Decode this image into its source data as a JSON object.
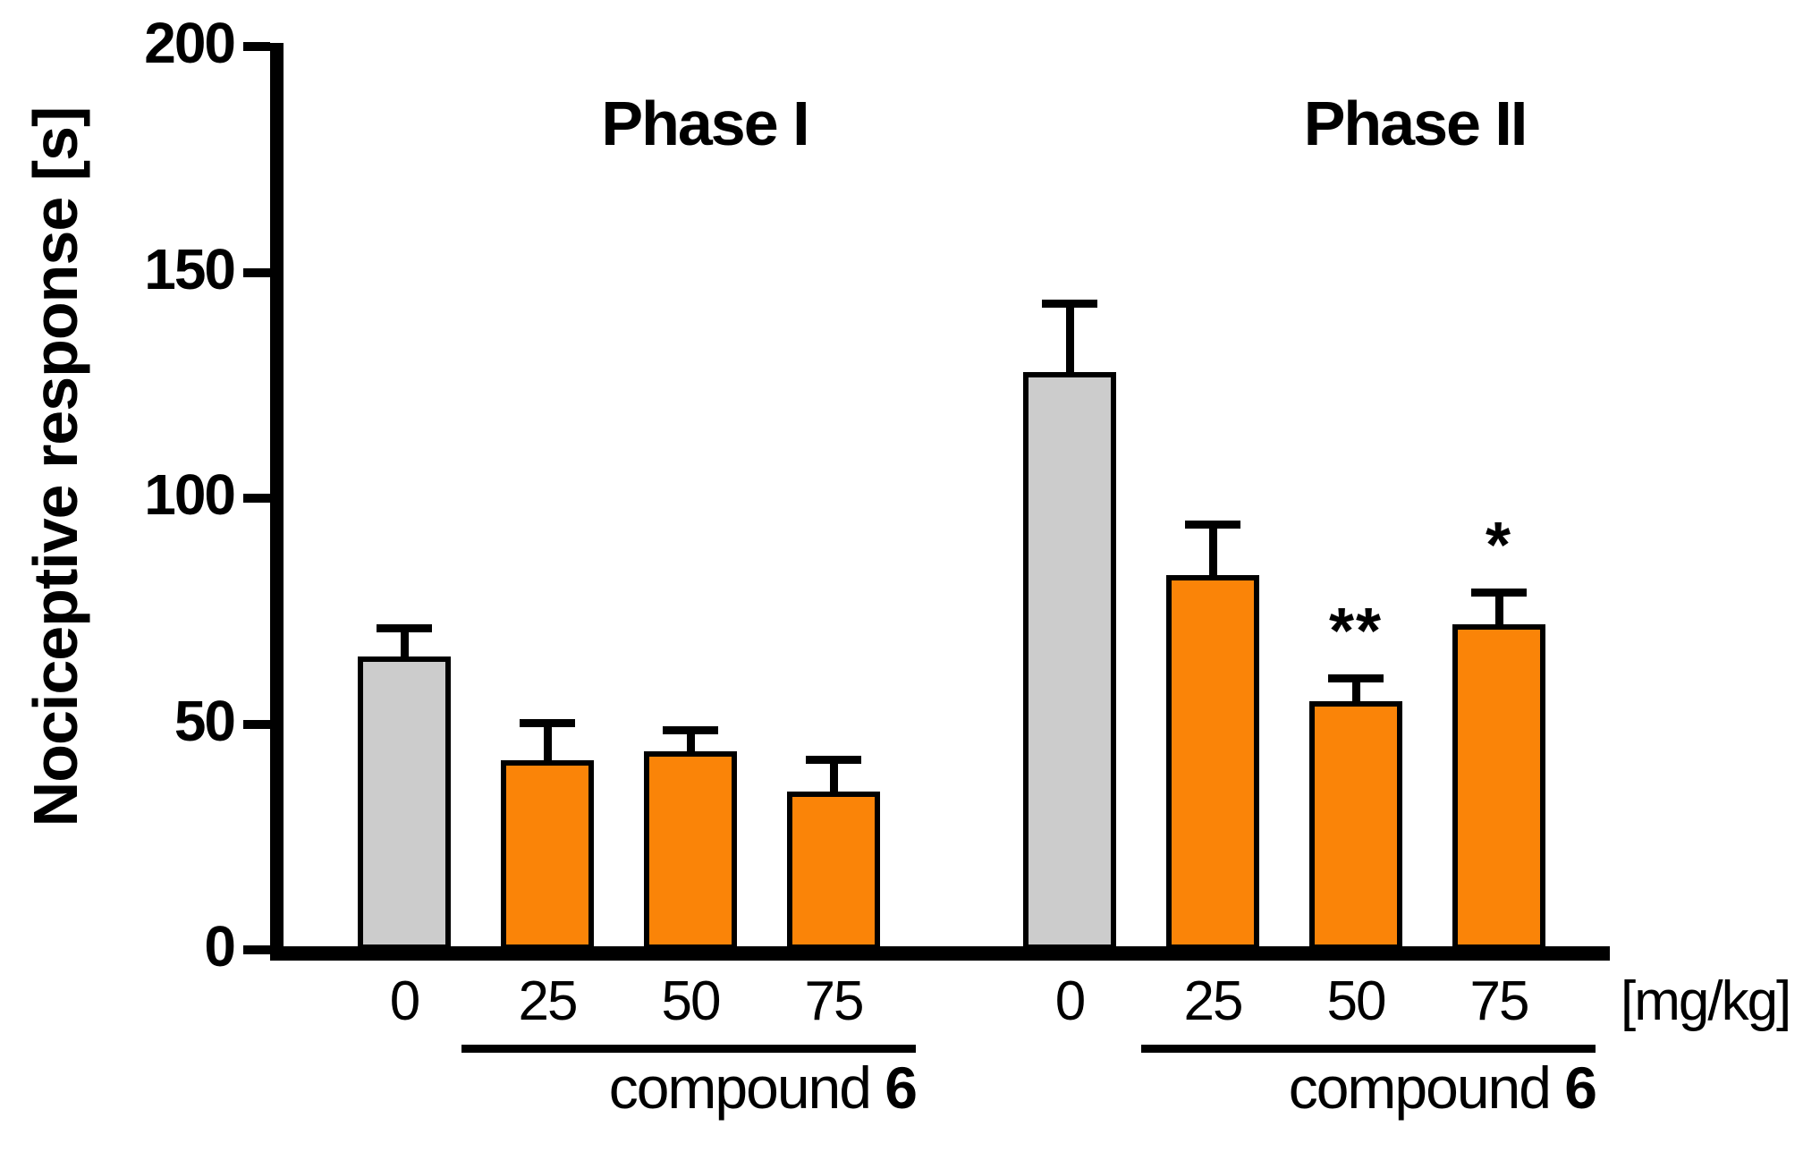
{
  "figure": {
    "background": "#ffffff"
  },
  "chart_data": {
    "type": "bar",
    "title": "",
    "ylabel": "Nociceptive response [s]",
    "xlabel": "",
    "unit_label": "[mg/kg]",
    "ylim": [
      0,
      200
    ],
    "yticks": [
      0,
      50,
      100,
      150,
      200
    ],
    "grid": false,
    "legend_position": "none",
    "error_bars": "upper SEM whiskers with caps",
    "colors": {
      "control_bar_fill": "#cccccc",
      "treated_bar_fill": "#fa8408",
      "bar_border": "#000000",
      "axis": "#000000",
      "text": "#000000"
    },
    "groups": [
      {
        "title": "Phase I",
        "bracket_word": "compound",
        "bracket_number": "6",
        "categories": [
          "0",
          "25",
          "50",
          "75"
        ],
        "values": [
          65,
          42,
          44,
          35
        ],
        "errors": [
          7,
          9,
          5.5,
          8
        ],
        "significance": [
          "",
          "",
          "",
          ""
        ],
        "bar_styles": [
          "control",
          "treated",
          "treated",
          "treated"
        ]
      },
      {
        "title": "Phase II",
        "bracket_word": "compound",
        "bracket_number": "6",
        "categories": [
          "0",
          "25",
          "50",
          "75"
        ],
        "values": [
          128,
          83,
          55,
          72
        ],
        "errors": [
          16,
          12,
          6,
          8
        ],
        "significance": [
          "",
          "",
          "**",
          "*"
        ],
        "bar_styles": [
          "control",
          "treated",
          "treated",
          "treated"
        ]
      }
    ]
  }
}
